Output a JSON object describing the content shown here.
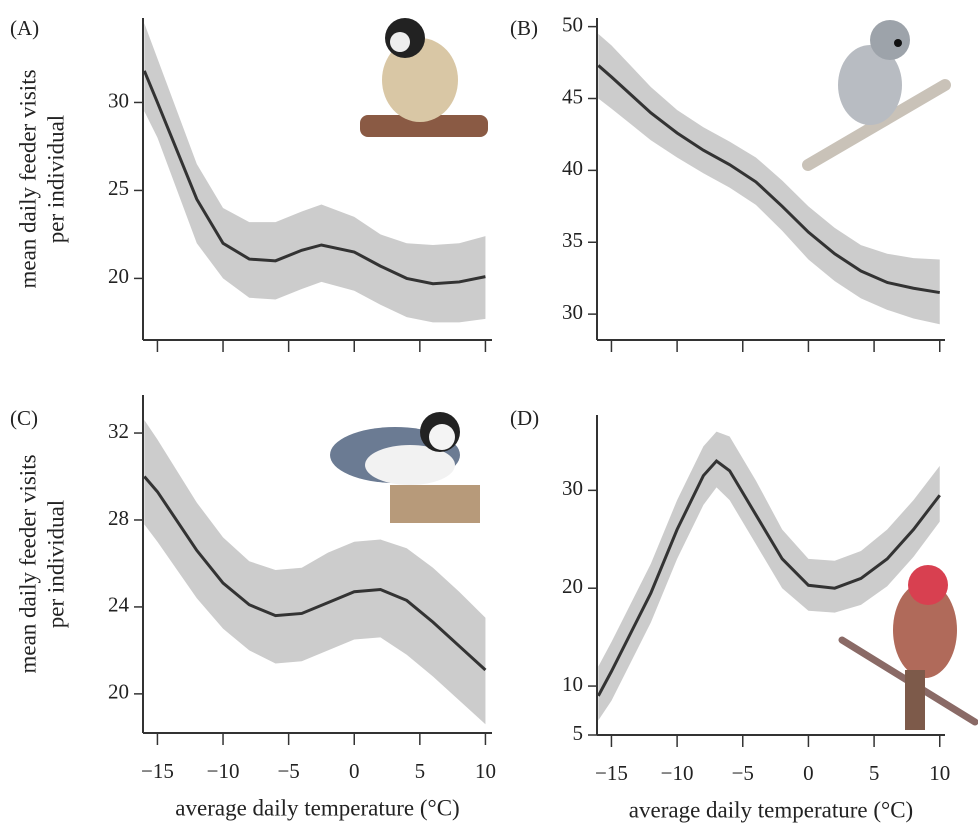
{
  "chart_data": [
    {
      "type": "line",
      "title": "(A)",
      "ylabel": [
        "mean daily feeder visits",
        "per individual"
      ],
      "x": [
        -16,
        -15,
        -12,
        -10,
        -8,
        -6,
        -4,
        -2.5,
        0,
        2,
        4,
        6,
        8,
        10
      ],
      "values": [
        31.8,
        30,
        24.5,
        22,
        21.1,
        21.0,
        21.6,
        21.9,
        21.5,
        20.7,
        20,
        19.7,
        19.8,
        20.1
      ],
      "upper": [
        34.5,
        32.5,
        26.5,
        24,
        23.2,
        23.2,
        23.8,
        24.2,
        23.5,
        22.5,
        22,
        21.9,
        22,
        22.4
      ],
      "lower": [
        29.5,
        28,
        22,
        20,
        18.9,
        18.8,
        19.4,
        19.8,
        19.3,
        18.5,
        17.8,
        17.5,
        17.5,
        17.7
      ],
      "color": "#333333",
      "band_color": "#cccccc",
      "xlim": [
        -16.1,
        10.5
      ],
      "xticks": [
        -15,
        -10,
        -5,
        0,
        5,
        10
      ],
      "show_xtick_labels": false,
      "ylim": [
        16.5,
        34.8
      ],
      "yticks": [
        20,
        25,
        30
      ]
    },
    {
      "type": "line",
      "title": "(B)",
      "x": [
        -16,
        -15,
        -12,
        -10,
        -8,
        -6,
        -4,
        -2,
        0,
        2,
        4,
        6,
        8,
        10
      ],
      "values": [
        47.3,
        46.5,
        44,
        42.6,
        41.4,
        40.4,
        39.2,
        37.5,
        35.7,
        34.2,
        33,
        32.2,
        31.8,
        31.5
      ],
      "upper": [
        49.5,
        48.7,
        45.8,
        44.2,
        43,
        42,
        40.9,
        39.3,
        37.5,
        36,
        34.8,
        34.2,
        33.9,
        33.8
      ],
      "lower": [
        45,
        44.3,
        42.1,
        40.9,
        39.8,
        38.8,
        37.6,
        35.8,
        33.8,
        32.3,
        31.1,
        30.3,
        29.7,
        29.3
      ],
      "color": "#333333",
      "band_color": "#cccccc",
      "xlim": [
        -16.1,
        10.4
      ],
      "xticks": [
        -15,
        -10,
        -5,
        0,
        5,
        10
      ],
      "show_xtick_labels": false,
      "ylim": [
        28.2,
        50.6
      ],
      "yticks": [
        30,
        35,
        40,
        45,
        50
      ]
    },
    {
      "type": "line",
      "title": "(C)",
      "ylabel": [
        "mean daily feeder visits",
        "per individual"
      ],
      "xlabel": "average daily temperature (°C)",
      "x": [
        -16,
        -15,
        -12,
        -10,
        -8,
        -6,
        -4,
        -2,
        0,
        2,
        4,
        6,
        8,
        10
      ],
      "values": [
        30,
        29.3,
        26.6,
        25.1,
        24.1,
        23.6,
        23.7,
        24.2,
        24.7,
        24.8,
        24.3,
        23.3,
        22.2,
        21.1
      ],
      "upper": [
        32.6,
        31.7,
        28.8,
        27.2,
        26.1,
        25.7,
        25.8,
        26.5,
        27,
        27.1,
        26.7,
        25.8,
        24.7,
        23.5
      ],
      "lower": [
        27.8,
        27,
        24.4,
        23,
        22,
        21.4,
        21.5,
        22,
        22.5,
        22.6,
        21.8,
        20.8,
        19.7,
        18.6
      ],
      "color": "#333333",
      "band_color": "#cccccc",
      "xlim": [
        -16.1,
        10.5
      ],
      "xticks": [
        {
          "value": -15,
          "label": "−15"
        },
        {
          "value": -10,
          "label": "−10"
        },
        {
          "value": -5,
          "label": "−5"
        },
        0,
        5,
        10
      ],
      "show_xtick_labels": true,
      "ylim": [
        18.2,
        33.75
      ],
      "yticks": [
        20,
        24,
        28,
        32
      ]
    },
    {
      "type": "line",
      "title": "(D)",
      "xlabel": "average daily temperature (°C)",
      "x": [
        -16,
        -15,
        -12,
        -10,
        -8,
        -7,
        -6,
        -4,
        -2,
        0,
        2,
        4,
        6,
        8,
        10
      ],
      "values": [
        9,
        11.5,
        19.5,
        26,
        31.5,
        33,
        32,
        27.5,
        23,
        20.3,
        20,
        21,
        23,
        26,
        29.5
      ],
      "upper": [
        12,
        14.5,
        22.5,
        29,
        34.5,
        36,
        35.5,
        31,
        26,
        23,
        22.8,
        23.8,
        26,
        29,
        32.5
      ],
      "lower": [
        6.5,
        8.5,
        16.5,
        23,
        28.5,
        30.3,
        29,
        24.5,
        20,
        17.7,
        17.5,
        18.3,
        20.2,
        23.2,
        26.8
      ],
      "color": "#333333",
      "band_color": "#cccccc",
      "xlim": [
        -16.1,
        10.4
      ],
      "xticks": [
        {
          "value": -15,
          "label": "−15"
        },
        {
          "value": -10,
          "label": "−10"
        },
        {
          "value": -5,
          "label": "−5"
        },
        0,
        5,
        10
      ],
      "show_xtick_labels": true,
      "ylim": [
        5,
        37.7
      ],
      "yticks": [
        5,
        10,
        20,
        30
      ]
    }
  ]
}
